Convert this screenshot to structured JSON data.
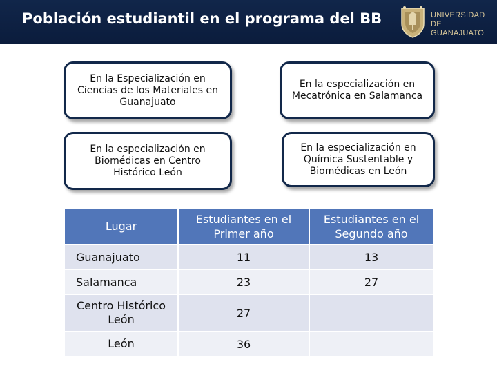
{
  "header": {
    "title": "Población estudiantil en el programa del BB",
    "logo": {
      "line1": "UNIVERSIDAD DE",
      "line2": "GUANAJUATO",
      "icon": "university-seal-icon"
    }
  },
  "cards": [
    {
      "text": "En la Especialización en Ciencias de los Materiales en Guanajuato"
    },
    {
      "text": "En la especialización en Mecatrónica en Salamanca"
    },
    {
      "text": "En la especialización en Biomédicas en Centro Histórico León"
    },
    {
      "text": "En la especialización en Química Sustentable y Biomédicas en León"
    }
  ],
  "table": {
    "headers": [
      "Lugar",
      "Estudiantes en el Primer año",
      "Estudiantes en el Segundo año"
    ],
    "rows": [
      {
        "lugar": "Guanajuato",
        "primer": "11",
        "segundo": "13"
      },
      {
        "lugar": "Salamanca",
        "primer": "23",
        "segundo": "27"
      },
      {
        "lugar": "Centro Histórico León",
        "primer": "27",
        "segundo": ""
      },
      {
        "lugar": "León",
        "primer": "36",
        "segundo": ""
      }
    ]
  },
  "colors": {
    "header_bg": "#0b1c3c",
    "table_header": "#5176b9",
    "row_dark": "#dfe2ee",
    "row_light": "#eef0f6",
    "logo_gold": "#d9c89a"
  }
}
